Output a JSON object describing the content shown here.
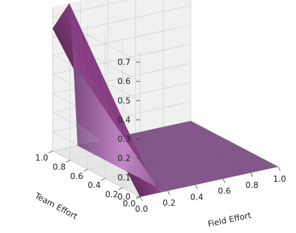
{
  "chart_data": {
    "type": "surface",
    "xlabel": "Field Effort",
    "ylabel": "Team Effort",
    "zlabel": "",
    "xlim": [
      0,
      1
    ],
    "ylim": [
      0,
      1
    ],
    "zlim": [
      0,
      0.75
    ],
    "xticks": [
      "0.0",
      "0.2",
      "0.4",
      "0.6",
      "0.8",
      "1.0"
    ],
    "yticks": [
      "0.0",
      "0.2",
      "0.4",
      "0.6",
      "0.8",
      "1.0"
    ],
    "zticks": [
      "0.0",
      "0.1",
      "0.2",
      "0.3",
      "0.4",
      "0.5",
      "0.6",
      "0.7"
    ],
    "grid": true,
    "surface_color": "#7a4a80",
    "surface_highlight": "#c98fcf",
    "surface_model": "z = 0.75 * y * x-profile where x <= 0.18, otherwise 0",
    "peak": {
      "x": 0.15,
      "y": 1.0,
      "z": 0.75
    },
    "flat_region": {
      "x_from": 0.18,
      "x_to": 1.0,
      "z": 0.0
    }
  }
}
